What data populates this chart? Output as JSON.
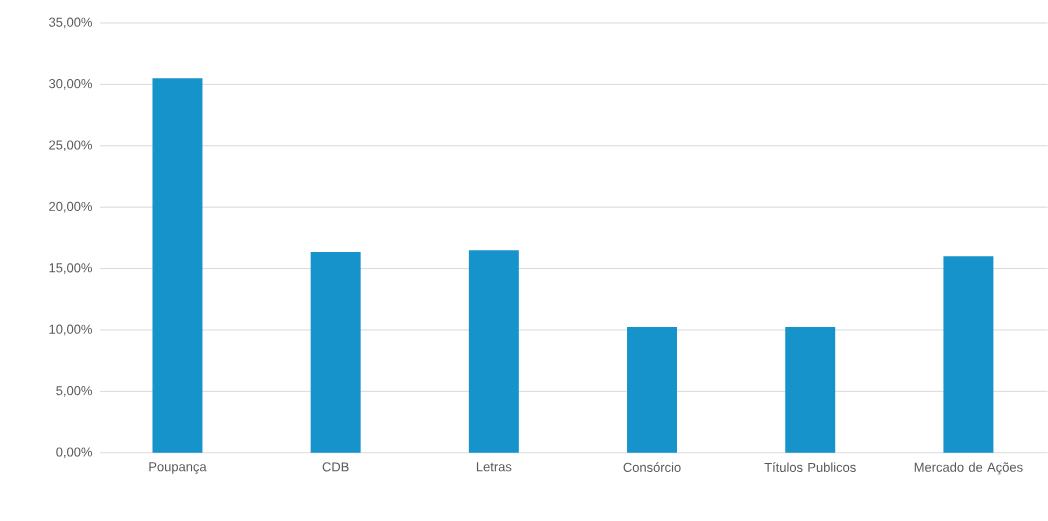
{
  "chart_data": {
    "type": "bar",
    "categories": [
      "Poupança",
      "CDB",
      "Letras",
      "Consórcio",
      "Títulos Publicos",
      "Mercado de Ações"
    ],
    "values": [
      30.5,
      16.35,
      16.5,
      10.25,
      10.25,
      16.0
    ],
    "color": "#1593ca",
    "ylim": [
      0,
      35
    ],
    "yticks": [
      {
        "value": 0,
        "label": "0,00%"
      },
      {
        "value": 5,
        "label": "5,00%"
      },
      {
        "value": 10,
        "label": "10,00%"
      },
      {
        "value": 15,
        "label": "15,00%"
      },
      {
        "value": 20,
        "label": "20,00%"
      },
      {
        "value": 25,
        "label": "25,00%"
      },
      {
        "value": 30,
        "label": "30,00%"
      },
      {
        "value": 35,
        "label": "35,00%"
      }
    ],
    "grid": "y"
  }
}
